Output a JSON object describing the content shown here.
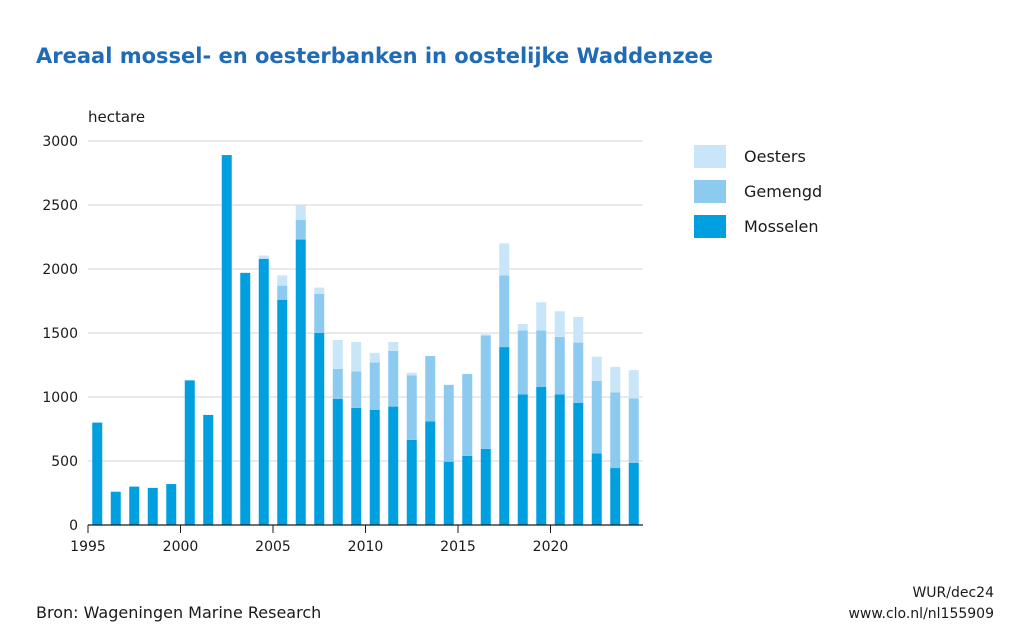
{
  "chart_data": {
    "type": "bar",
    "stacked": true,
    "title": "Areaal mossel- en oesterbanken in oostelijke Waddenzee",
    "ylabel": "hectare",
    "xlabel": "",
    "ylim": [
      0,
      3000
    ],
    "yticks": [
      0,
      500,
      1000,
      1500,
      2000,
      2500,
      3000
    ],
    "xticks": [
      1995,
      2000,
      2005,
      2010,
      2015,
      2020
    ],
    "grid": true,
    "legend_position": "right",
    "categories": [
      1995,
      1996,
      1997,
      1998,
      1999,
      2000,
      2001,
      2002,
      2003,
      2004,
      2005,
      2006,
      2007,
      2008,
      2009,
      2010,
      2011,
      2012,
      2013,
      2014,
      2015,
      2016,
      2017,
      2018,
      2019,
      2020,
      2021,
      2022,
      2023,
      2024
    ],
    "series": [
      {
        "name": "Mosselen",
        "color": "#009fe0",
        "values": [
          800,
          260,
          300,
          290,
          320,
          1130,
          860,
          2890,
          1970,
          2080,
          1760,
          2230,
          1500,
          985,
          915,
          900,
          925,
          665,
          810,
          495,
          540,
          595,
          1390,
          1020,
          1080,
          1020,
          955,
          560,
          445,
          485
        ]
      },
      {
        "name": "Gemengd",
        "color": "#8ccaf0",
        "values": [
          0,
          0,
          0,
          0,
          0,
          0,
          0,
          0,
          0,
          0,
          110,
          155,
          305,
          235,
          285,
          370,
          435,
          505,
          510,
          600,
          640,
          885,
          560,
          500,
          440,
          450,
          470,
          565,
          590,
          505
        ]
      },
      {
        "name": "Oesters",
        "color": "#c9e6f9",
        "values": [
          0,
          0,
          0,
          0,
          0,
          0,
          0,
          0,
          0,
          25,
          80,
          115,
          50,
          225,
          230,
          75,
          70,
          20,
          0,
          0,
          0,
          10,
          250,
          50,
          220,
          200,
          200,
          190,
          200,
          220
        ]
      }
    ]
  },
  "footer": {
    "source": "Bron: Wageningen Marine Research",
    "credit_line1": "WUR/dec24",
    "credit_line2": "www.clo.nl/nl155909"
  }
}
